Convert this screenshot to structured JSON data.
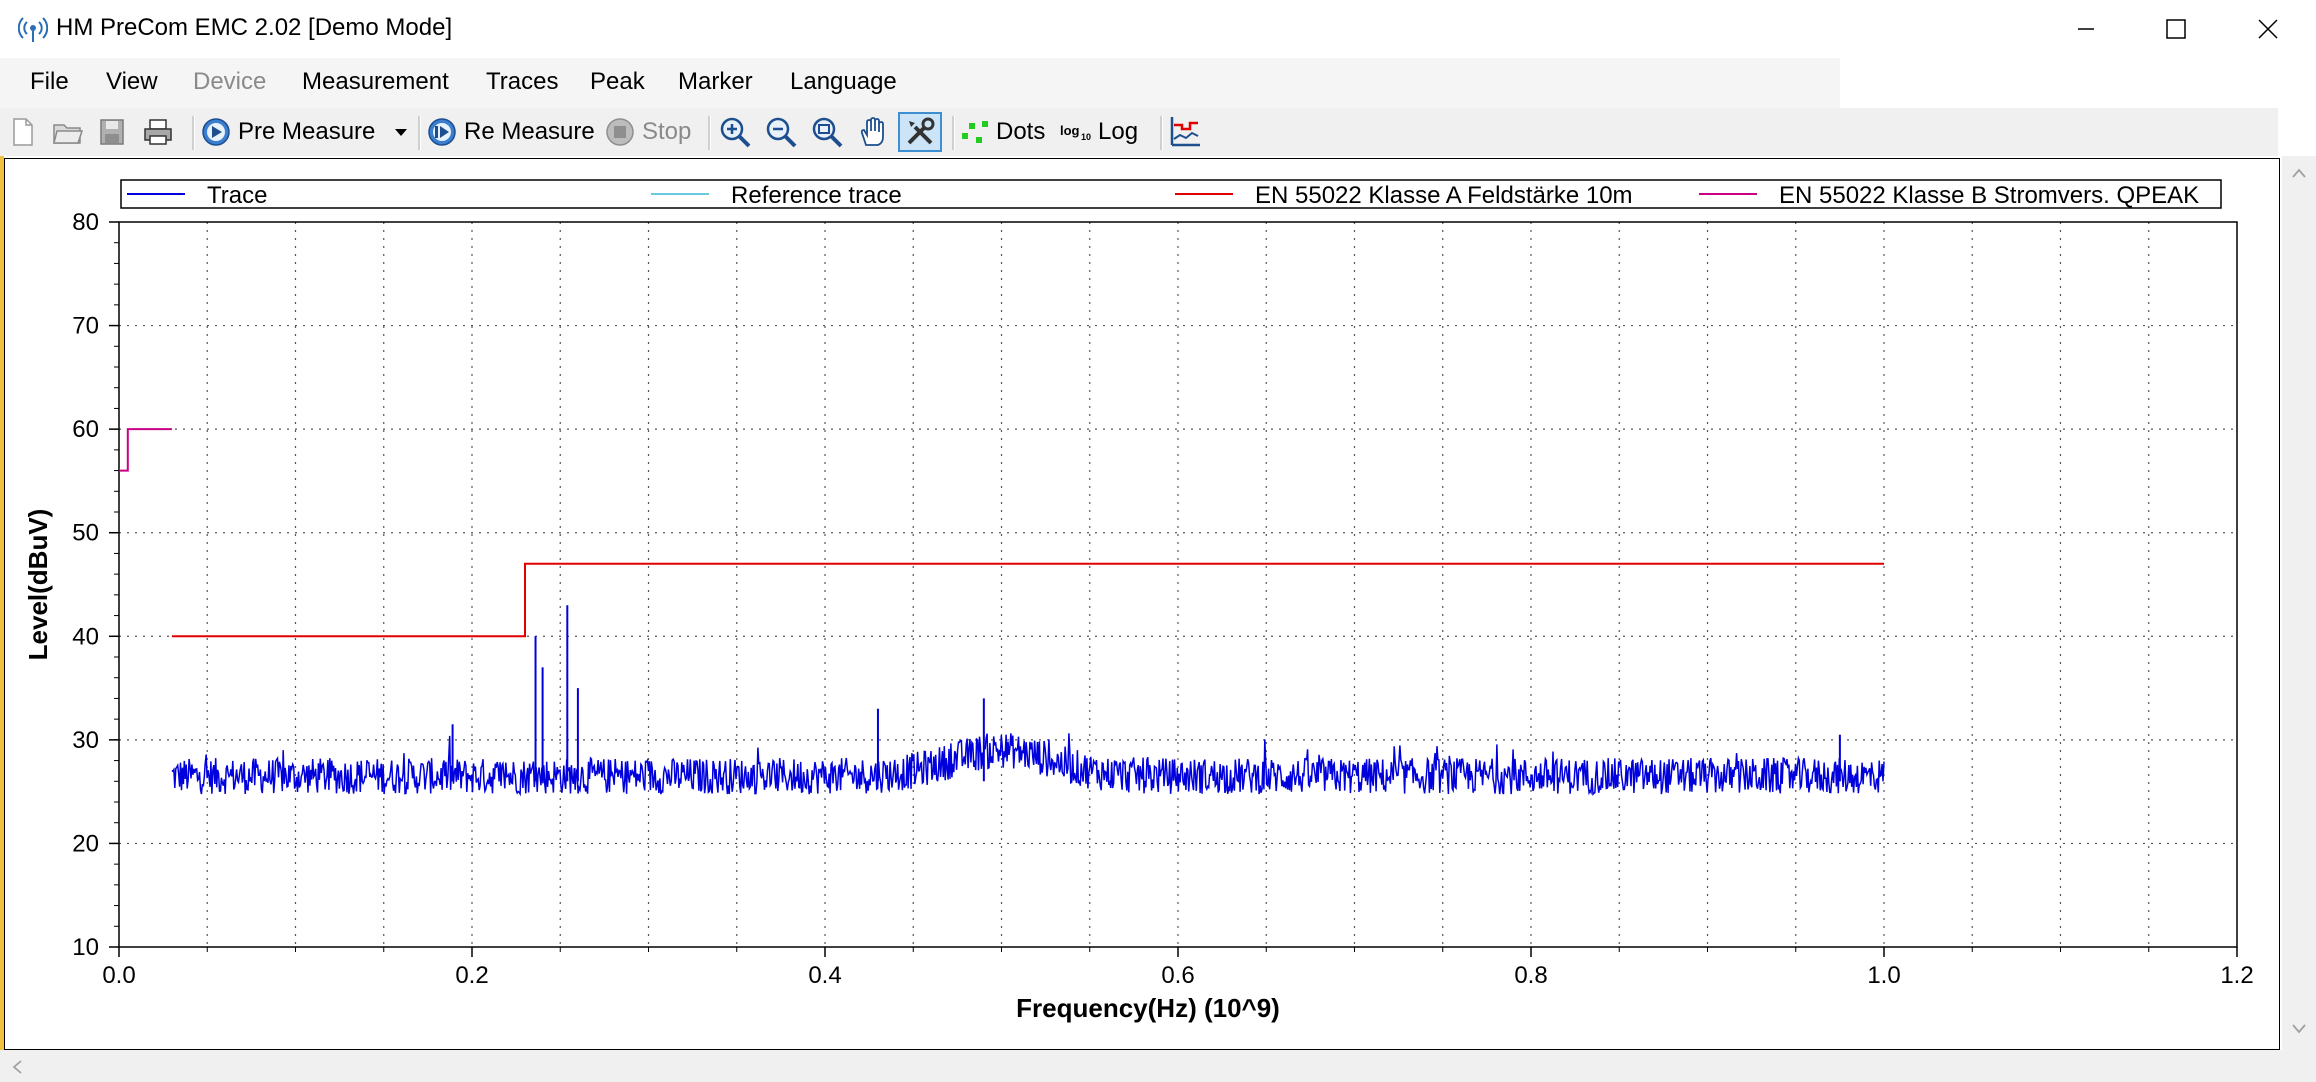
{
  "window": {
    "title": "HM PreCom EMC  2.02 [Demo Mode]"
  },
  "menu": {
    "items": [
      {
        "label": "File",
        "disabled": false
      },
      {
        "label": "View",
        "disabled": false
      },
      {
        "label": "Device",
        "disabled": true
      },
      {
        "label": "Measurement",
        "disabled": false
      },
      {
        "label": "Traces",
        "disabled": false
      },
      {
        "label": "Peak",
        "disabled": false
      },
      {
        "label": "Marker",
        "disabled": false
      },
      {
        "label": "Language",
        "disabled": false
      }
    ]
  },
  "toolbar": {
    "pre_measure": "Pre Measure",
    "re_measure": "Re Measure",
    "stop": "Stop",
    "dots": "Dots",
    "log": "Log"
  },
  "chart_data": {
    "type": "line",
    "xlabel": "Frequency(Hz) (10^9)",
    "ylabel": "Level(dBuV)",
    "xlim": [
      0.0,
      1.2
    ],
    "ylim": [
      10,
      80
    ],
    "x_ticks": [
      "0.0",
      "0.2",
      "0.4",
      "0.6",
      "0.8",
      "1.0",
      "1.2"
    ],
    "y_ticks": [
      "10",
      "20",
      "30",
      "40",
      "50",
      "60",
      "70",
      "80"
    ],
    "grid": true,
    "legend_position": "top",
    "series": [
      {
        "name": "Trace",
        "color": "#0000dd",
        "noise": {
          "x_start": 0.03,
          "x_end": 1.0,
          "baseline_dbuv": 26.5,
          "band_dbuv": [
            25,
            28.5
          ]
        },
        "bump": {
          "center": 0.5,
          "height_db": 2.5
        },
        "peaks": [
          [
            0.236,
            40.0
          ],
          [
            0.254,
            43.0
          ],
          [
            0.24,
            37.0
          ],
          [
            0.26,
            35.0
          ],
          [
            0.189,
            31.5
          ],
          [
            0.43,
            33.0
          ],
          [
            0.49,
            34.0
          ],
          [
            0.975,
            30.5
          ]
        ]
      },
      {
        "name": "Reference trace",
        "color": "#66ccdd",
        "points": []
      },
      {
        "name": "EN 55022 Klasse A Feldstärke 10m",
        "color": "#e00000",
        "points": [
          [
            0.03,
            40
          ],
          [
            0.23,
            40
          ],
          [
            0.23,
            47
          ],
          [
            1.0,
            47
          ]
        ]
      },
      {
        "name": "EN 55022 Klasse B Stromvers. QPEAK",
        "color": "#cc0088",
        "points": [
          [
            0.0,
            56
          ],
          [
            0.005,
            56
          ],
          [
            0.005,
            60
          ],
          [
            0.03,
            60
          ]
        ]
      }
    ]
  }
}
